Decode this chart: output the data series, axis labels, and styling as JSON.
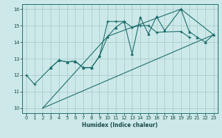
{
  "xlabel": "Humidex (Indice chaleur)",
  "bg_color": "#cce8e8",
  "grid_color": "#aacccc",
  "line_color": "#1a6b6b",
  "xlim": [
    -0.5,
    23.5
  ],
  "ylim": [
    9.7,
    16.3
  ],
  "xticks": [
    0,
    1,
    2,
    3,
    4,
    5,
    6,
    7,
    8,
    9,
    10,
    11,
    12,
    13,
    14,
    15,
    16,
    17,
    18,
    19,
    20,
    21,
    22,
    23
  ],
  "yticks": [
    10,
    11,
    12,
    13,
    14,
    15,
    16
  ],
  "s0x": [
    0,
    1,
    3,
    4,
    5,
    6,
    7,
    8,
    9,
    10,
    11,
    12,
    13,
    14,
    15,
    16,
    19,
    20
  ],
  "s0y": [
    12.0,
    11.45,
    12.45,
    12.9,
    12.8,
    12.85,
    12.45,
    12.45,
    13.15,
    15.25,
    15.25,
    15.25,
    14.9,
    15.0,
    15.0,
    14.6,
    14.65,
    14.3
  ],
  "s1x": [
    3,
    4,
    5,
    6,
    7,
    8,
    9,
    10,
    11,
    12,
    13,
    14,
    15,
    16,
    17,
    19,
    20,
    21,
    22,
    23
  ],
  "s1y": [
    12.45,
    12.9,
    12.8,
    12.85,
    12.45,
    12.45,
    13.15,
    14.35,
    14.9,
    15.25,
    13.3,
    15.5,
    14.5,
    15.55,
    14.7,
    16.0,
    14.65,
    14.3,
    14.0,
    14.45
  ],
  "s2x": [
    2,
    23
  ],
  "s2y": [
    10.0,
    14.45
  ],
  "s3x": [
    2,
    10,
    19,
    23
  ],
  "s3y": [
    10.0,
    14.35,
    16.0,
    14.45
  ]
}
